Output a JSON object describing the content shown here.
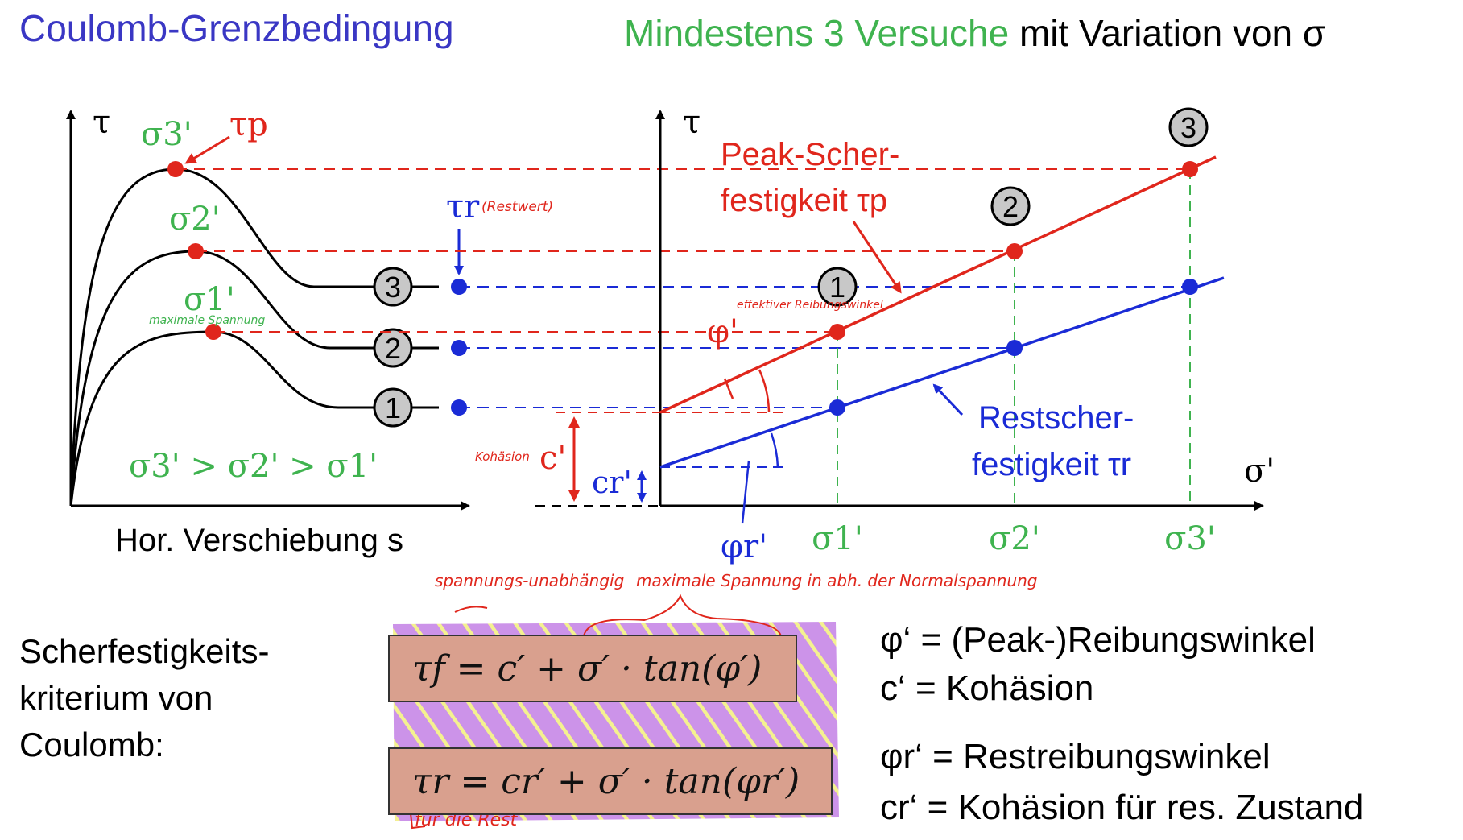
{
  "titles": {
    "left": "Coulomb-Grenzbedingung",
    "right_green": "Mindestens 3 Versuche",
    "right_black": "mit Variation von σ"
  },
  "left_plot": {
    "y_axis": "τ",
    "x_axis": "Hor. Verschiebung s",
    "peak_labels": [
      "σ3'",
      "σ2'",
      "σ1'"
    ],
    "tau_p": "τp",
    "tau_r": "τr",
    "tau_r_note": "(Restwert)",
    "curve_numbers": [
      "3",
      "2",
      "1"
    ],
    "inequality": "σ3' > σ2' > σ1'",
    "handwritten_peak": "maximale Spannung"
  },
  "right_plot": {
    "y_axis": "τ",
    "x_axis": "σ'",
    "x_ticks": [
      "σ1'",
      "σ2'",
      "σ3'"
    ],
    "point_numbers": [
      "1",
      "2",
      "3"
    ],
    "peak_label_1": "Peak-Scher-",
    "peak_label_2": "festigkeit τp",
    "rest_label_1": "Restscher-",
    "rest_label_2": "festigkeit τr",
    "phi": "φ'",
    "phi_r": "φr'",
    "c": "c'",
    "c_r": "cr'",
    "handwritten_phi": "effektiver Reibungswinkel",
    "handwritten_c": "Kohäsion"
  },
  "criterion": {
    "label": "Scherfestigkeits-kriterium von Coulomb:",
    "formula1": "τf = c′ + σ′ · tan(φ′)",
    "formula2": "τr = cr′ + σ′ · tan(φr′)",
    "note_top1": "spannungs-unabhängig",
    "note_top2": "maximale Spannung in abh. der Normalspannung",
    "note_bottom": "für die Rest"
  },
  "legend": {
    "line1": "φ‘ = (Peak-)Reibungswinkel",
    "line2": "c‘ = Kohäsion",
    "line3": "φr‘ = Restreibungswinkel",
    "line4": "cr‘ = Kohäsion für res. Zustand"
  },
  "colors": {
    "red": "#e0261c",
    "blue": "#1a2bd6",
    "green": "#3fb34f",
    "highlight_purple": "#c98de8",
    "highlight_yellow": "#f3f08a",
    "formula_bg": "#d9a08e"
  }
}
